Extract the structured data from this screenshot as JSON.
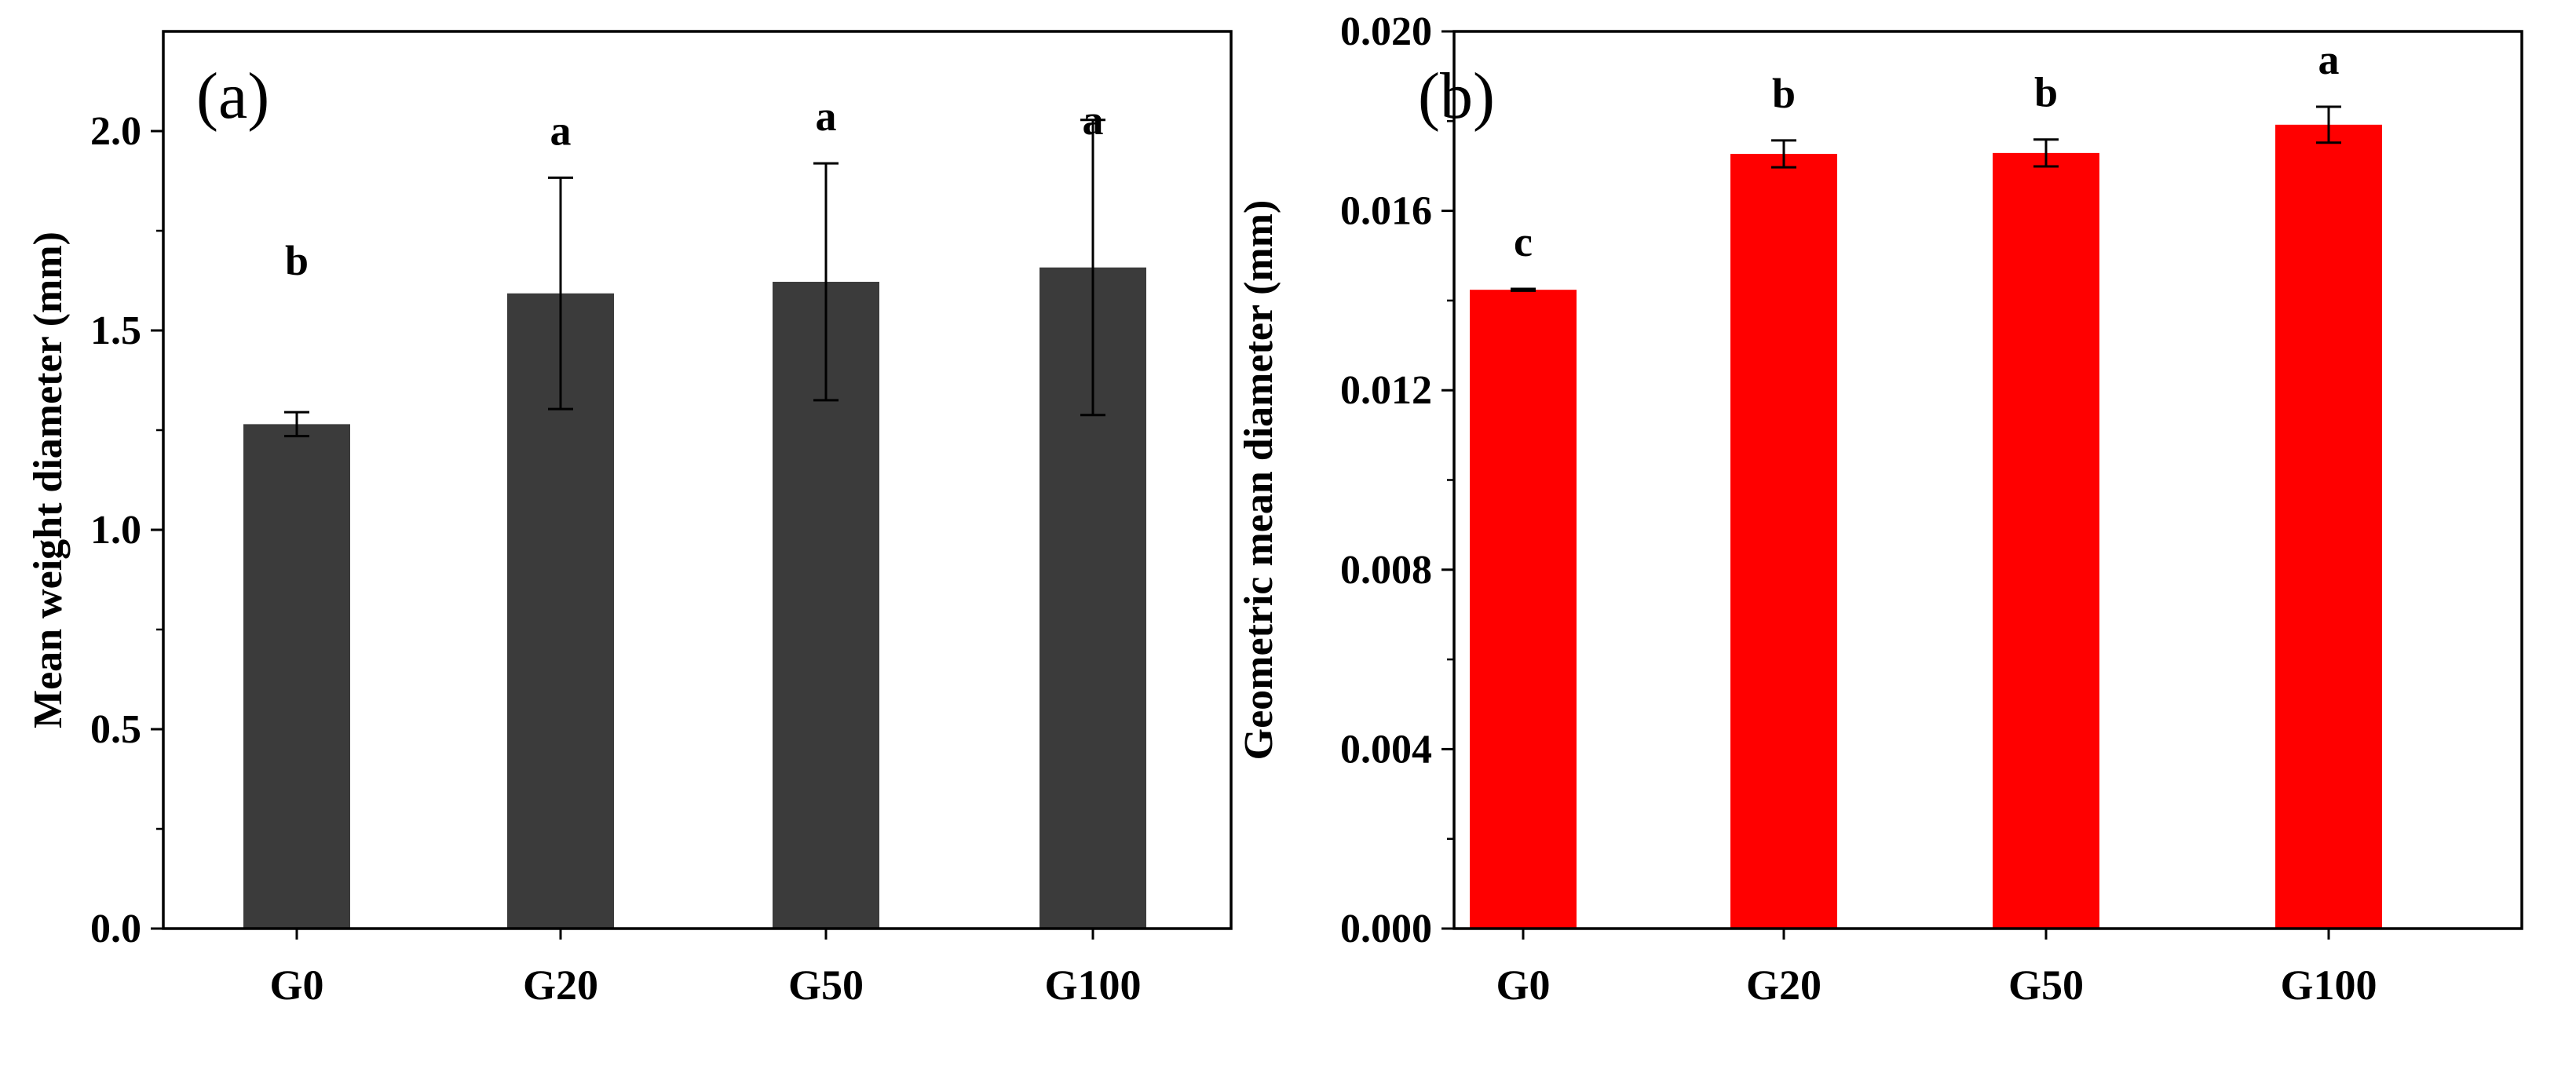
{
  "chart_data": [
    {
      "type": "bar",
      "panel_label": "(a)",
      "categories": [
        "G0",
        "G20",
        "G50",
        "G100"
      ],
      "values": [
        1.265,
        1.593,
        1.622,
        1.658
      ],
      "errors": [
        0.03,
        0.29,
        0.297,
        0.37
      ],
      "significance": [
        "b",
        "a",
        "a",
        "a"
      ],
      "ylabel": "Mean weight diameter (mm)",
      "xlabel": "",
      "ylim": [
        0,
        2.25
      ],
      "yticks": [
        0.0,
        0.5,
        1.0,
        1.5,
        2.0
      ],
      "ytick_labels": [
        "0.0",
        "0.5",
        "1.0",
        "1.5",
        "2.0"
      ],
      "bar_color": "#3b3b3b"
    },
    {
      "type": "bar",
      "panel_label": "(b)",
      "categories": [
        "G0",
        "G20",
        "G50",
        "G100"
      ],
      "values": [
        0.01424,
        0.01727,
        0.01729,
        0.01792
      ],
      "errors": [
        2e-05,
        0.0003,
        0.0003,
        0.0004
      ],
      "significance": [
        "c",
        "b",
        "b",
        "a"
      ],
      "ylabel": "Geometric mean diameter (mm)",
      "xlabel": "",
      "ylim": [
        0,
        0.02
      ],
      "yticks": [
        0.0,
        0.004,
        0.008,
        0.012,
        0.016,
        0.02
      ],
      "ytick_labels": [
        "0.000",
        "0.004",
        "0.008",
        "0.012",
        "0.016",
        "0.020"
      ],
      "bar_color": "#ff0000"
    }
  ]
}
